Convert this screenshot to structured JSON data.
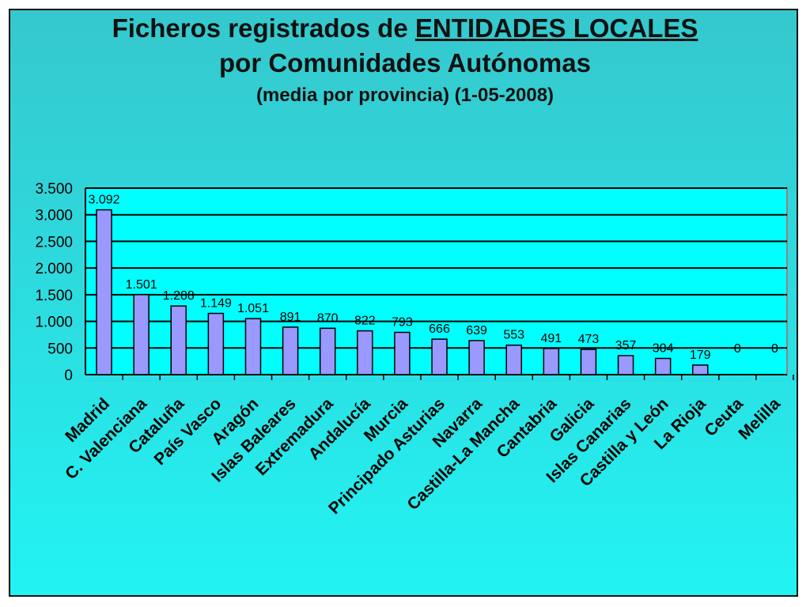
{
  "title": {
    "prefix": "Ficheros registrados de ",
    "underlined": "ENTIDADES LOCALES",
    "line2": "por Comunidades Autónomas",
    "line3": "(media por provincia) (1-05-2008)"
  },
  "colors": {
    "bar_fill": "#9999ff",
    "bar_stroke": "#000000",
    "plot_bg": "#00ffff",
    "grid": "#000000"
  },
  "chart_data": {
    "type": "bar",
    "categories": [
      "Madrid",
      "C. Valenciana",
      "Cataluña",
      "País Vasco",
      "Aragón",
      "Islas Baleares",
      "Extremadura",
      "Andalucía",
      "Murcia",
      "Principado Asturias",
      "Navarra",
      "Castilla-La Mancha",
      "Cantabria",
      "Galicia",
      "Islas Canarias",
      "Castilla y León",
      "La Rioja",
      "Ceuta",
      "Melilla"
    ],
    "values": [
      3092,
      1501,
      1288,
      1149,
      1051,
      891,
      870,
      822,
      793,
      666,
      639,
      553,
      491,
      473,
      357,
      304,
      179,
      0,
      0
    ],
    "value_labels": [
      "3.092",
      "1.501",
      "1.288",
      "1.149",
      "1.051",
      "891",
      "870",
      "822",
      "793",
      "666",
      "639",
      "553",
      "491",
      "473",
      "357",
      "304",
      "179",
      "0",
      "0"
    ],
    "yticks": [
      0,
      500,
      1000,
      1500,
      2000,
      2500,
      3000,
      3500
    ],
    "ytick_labels": [
      "0",
      "500",
      "1.000",
      "1.500",
      "2.000",
      "2.500",
      "3.000",
      "3.500"
    ],
    "ylim": [
      0,
      3500
    ],
    "grid": true,
    "legend": false
  }
}
